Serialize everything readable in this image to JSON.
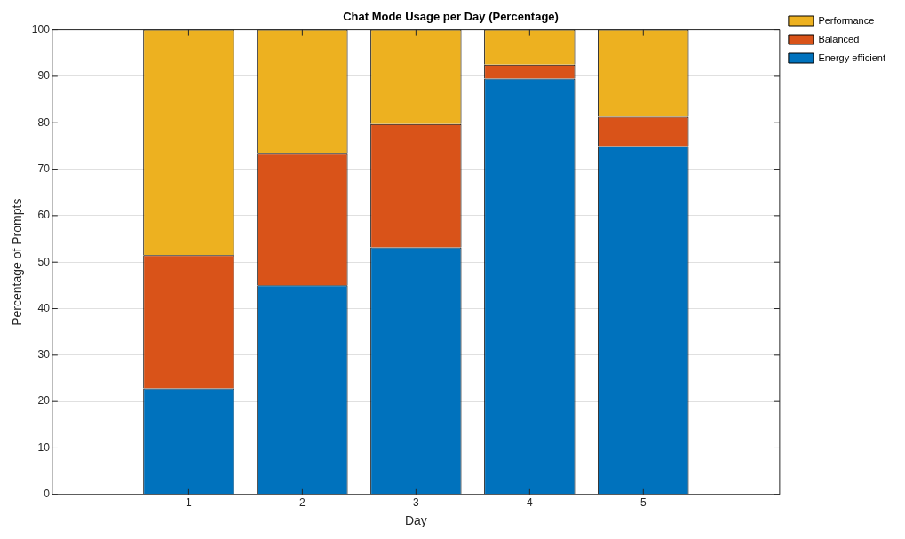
{
  "chart_data": {
    "type": "bar",
    "title": "Chat Mode Usage per Day (Percentage)",
    "xlabel": "Day",
    "ylabel": "Percentage of Prompts",
    "x": [
      1,
      2,
      3,
      4,
      5
    ],
    "xlim": [
      -0.2,
      6.2
    ],
    "xticks": [
      1,
      2,
      3,
      4,
      5
    ],
    "ylim": [
      0,
      100
    ],
    "yticks": [
      0,
      10,
      20,
      30,
      40,
      50,
      60,
      70,
      80,
      90,
      100
    ],
    "stacked": true,
    "grid": "y",
    "legend": "top right",
    "series": [
      {
        "name": "Energy efficient",
        "color": "#0072bd",
        "values": [
          22.8,
          45,
          53.2,
          89.5,
          75
        ]
      },
      {
        "name": "Balanced",
        "color": "#d95319",
        "values": [
          28.7,
          28.5,
          26.5,
          3,
          6.3
        ]
      },
      {
        "name": "Performance",
        "color": "#edb120",
        "values": [
          48.5,
          26.5,
          20.3,
          7.5,
          18.7
        ]
      }
    ]
  }
}
